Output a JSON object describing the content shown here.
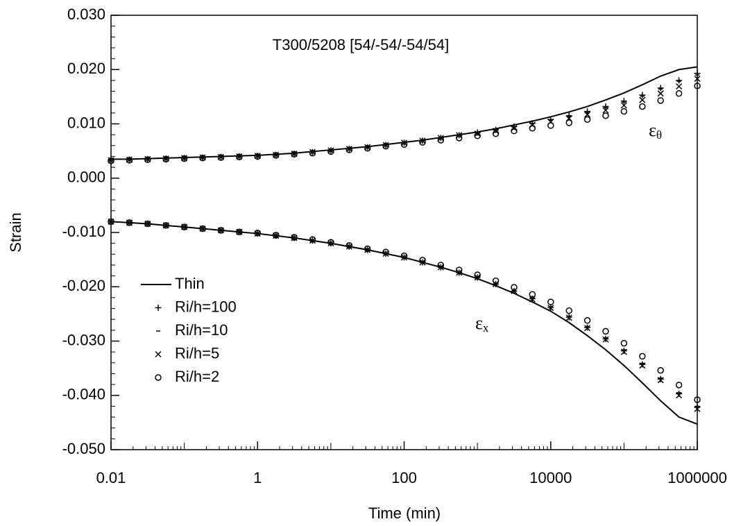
{
  "chart_data": {
    "type": "line",
    "title": "T300/5208 [54/-54/-54/54]",
    "x_label": "Time (min)",
    "y_label": "Strain",
    "x_scale": "log",
    "x": [
      0.01,
      0.0178,
      0.0316,
      0.0562,
      0.1,
      0.178,
      0.316,
      0.562,
      1,
      1.78,
      3.16,
      5.62,
      10,
      17.8,
      31.6,
      56.2,
      100,
      178,
      316,
      562,
      1000,
      1780,
      3160,
      5620,
      10000,
      17800,
      31600,
      56200,
      100000,
      178000,
      316000,
      562000,
      1000000
    ],
    "xlim": [
      0.01,
      1000000
    ],
    "xticks": [
      0.01,
      1,
      100,
      10000,
      1000000
    ],
    "ylim": [
      -0.05,
      0.03
    ],
    "yticks": [
      {
        "value": -0.05,
        "label": "-0.050"
      },
      {
        "value": -0.04,
        "label": "-0.040"
      },
      {
        "value": -0.03,
        "label": "-0.030"
      },
      {
        "value": -0.02,
        "label": "-0.020"
      },
      {
        "value": -0.01,
        "label": "-0.010"
      },
      {
        "value": 0,
        "label": "0.000"
      },
      {
        "value": 0.01,
        "label": "0.010"
      },
      {
        "value": 0.02,
        "label": "0.020"
      },
      {
        "value": 0.03,
        "label": "0.030"
      }
    ],
    "legend": "lower-left",
    "annotations": [
      {
        "text": "ε",
        "sub": "θ"
      },
      {
        "text": "ε",
        "sub": "x"
      }
    ],
    "series": [
      {
        "name": "Thin",
        "marker": "line",
        "color": "#000000",
        "values_theta": [
          0.0035,
          0.0035,
          0.0036,
          0.0037,
          0.0038,
          0.0039,
          0.004,
          0.0041,
          0.0042,
          0.0044,
          0.0046,
          0.0049,
          0.0052,
          0.0055,
          0.0058,
          0.0062,
          0.0066,
          0.007,
          0.0075,
          0.008,
          0.0085,
          0.0091,
          0.0098,
          0.0105,
          0.0113,
          0.0122,
          0.0132,
          0.0144,
          0.0157,
          0.0172,
          0.0188,
          0.02,
          0.0205
        ],
        "values_x": [
          -0.008,
          -0.0082,
          -0.0084,
          -0.0087,
          -0.009,
          -0.0093,
          -0.0096,
          -0.0099,
          -0.0102,
          -0.0106,
          -0.011,
          -0.0115,
          -0.012,
          -0.0126,
          -0.0132,
          -0.0139,
          -0.0146,
          -0.0155,
          -0.0164,
          -0.0174,
          -0.0185,
          -0.0198,
          -0.0212,
          -0.0228,
          -0.0245,
          -0.0266,
          -0.029,
          -0.0316,
          -0.0345,
          -0.0377,
          -0.041,
          -0.044,
          -0.0453
        ]
      },
      {
        "name": "Ri/h=100",
        "marker": "plus",
        "color": "#000000",
        "values_theta": [
          0.0033,
          0.0034,
          0.0035,
          0.0036,
          0.0037,
          0.0038,
          0.0039,
          0.004,
          0.0041,
          0.0043,
          0.0045,
          0.0048,
          0.0051,
          0.0054,
          0.0057,
          0.0061,
          0.0065,
          0.0069,
          0.0074,
          0.0079,
          0.0084,
          0.0089,
          0.0095,
          0.0101,
          0.0108,
          0.0115,
          0.0123,
          0.0132,
          0.0142,
          0.0153,
          0.0166,
          0.018,
          0.0193
        ],
        "values_x": [
          -0.008,
          -0.0082,
          -0.0084,
          -0.0087,
          -0.009,
          -0.0093,
          -0.0096,
          -0.0099,
          -0.0102,
          -0.0106,
          -0.011,
          -0.0115,
          -0.012,
          -0.0126,
          -0.0132,
          -0.0139,
          -0.0146,
          -0.0155,
          -0.0164,
          -0.0174,
          -0.0183,
          -0.0195,
          -0.0208,
          -0.0222,
          -0.0238,
          -0.0256,
          -0.0275,
          -0.0296,
          -0.0318,
          -0.0343,
          -0.037,
          -0.0397,
          -0.0422
        ]
      },
      {
        "name": "Ri/h=10",
        "marker": "dash",
        "color": "#000000",
        "values_theta": [
          0.0033,
          0.0034,
          0.0035,
          0.0036,
          0.0037,
          0.0038,
          0.0039,
          0.004,
          0.0041,
          0.0043,
          0.0045,
          0.0048,
          0.0051,
          0.0054,
          0.0057,
          0.0061,
          0.0065,
          0.0069,
          0.0074,
          0.0079,
          0.0083,
          0.0088,
          0.0094,
          0.01,
          0.0106,
          0.0113,
          0.0121,
          0.013,
          0.014,
          0.0151,
          0.0164,
          0.0178,
          0.019
        ],
        "values_x": [
          -0.008,
          -0.0082,
          -0.0084,
          -0.0087,
          -0.009,
          -0.0093,
          -0.0096,
          -0.0099,
          -0.0102,
          -0.0106,
          -0.011,
          -0.0115,
          -0.012,
          -0.0126,
          -0.0132,
          -0.0139,
          -0.0146,
          -0.0155,
          -0.0164,
          -0.0174,
          -0.0182,
          -0.0194,
          -0.0207,
          -0.0221,
          -0.0237,
          -0.0254,
          -0.0273,
          -0.0294,
          -0.0316,
          -0.0341,
          -0.0368,
          -0.0395,
          -0.042
        ]
      },
      {
        "name": "Ri/h=5",
        "marker": "cross",
        "color": "#000000",
        "values_theta": [
          0.0033,
          0.0034,
          0.0035,
          0.0036,
          0.0037,
          0.0038,
          0.0039,
          0.004,
          0.0041,
          0.0043,
          0.0045,
          0.0048,
          0.0051,
          0.0054,
          0.0057,
          0.0061,
          0.0065,
          0.0069,
          0.0074,
          0.0079,
          0.0082,
          0.0087,
          0.0092,
          0.0098,
          0.0104,
          0.011,
          0.0117,
          0.0125,
          0.0134,
          0.0144,
          0.0156,
          0.0169,
          0.0183
        ],
        "values_x": [
          -0.008,
          -0.0082,
          -0.0084,
          -0.0087,
          -0.009,
          -0.0093,
          -0.0096,
          -0.0099,
          -0.0102,
          -0.0106,
          -0.011,
          -0.0115,
          -0.012,
          -0.0126,
          -0.0132,
          -0.0139,
          -0.0146,
          -0.0155,
          -0.0164,
          -0.0174,
          -0.0183,
          -0.0195,
          -0.0208,
          -0.0223,
          -0.0239,
          -0.0257,
          -0.0276,
          -0.0297,
          -0.032,
          -0.0345,
          -0.0372,
          -0.04,
          -0.0425
        ]
      },
      {
        "name": "Ri/h=2",
        "marker": "circle",
        "color": "#000000",
        "values_theta": [
          0.0032,
          0.0033,
          0.0034,
          0.0035,
          0.0036,
          0.0037,
          0.0038,
          0.0039,
          0.004,
          0.0042,
          0.0044,
          0.0046,
          0.0049,
          0.0052,
          0.0055,
          0.0059,
          0.0062,
          0.0066,
          0.007,
          0.0074,
          0.0078,
          0.0082,
          0.0087,
          0.0092,
          0.0097,
          0.0102,
          0.0108,
          0.0115,
          0.0123,
          0.0132,
          0.0143,
          0.0156,
          0.017
        ],
        "values_x": [
          -0.008,
          -0.0082,
          -0.0084,
          -0.0087,
          -0.009,
          -0.0093,
          -0.0096,
          -0.0099,
          -0.0101,
          -0.0105,
          -0.0109,
          -0.0113,
          -0.0118,
          -0.0124,
          -0.013,
          -0.0136,
          -0.0143,
          -0.0151,
          -0.016,
          -0.0169,
          -0.0178,
          -0.0189,
          -0.0201,
          -0.0214,
          -0.0228,
          -0.0244,
          -0.0262,
          -0.0282,
          -0.0304,
          -0.0328,
          -0.0354,
          -0.0381,
          -0.0408
        ]
      }
    ]
  }
}
